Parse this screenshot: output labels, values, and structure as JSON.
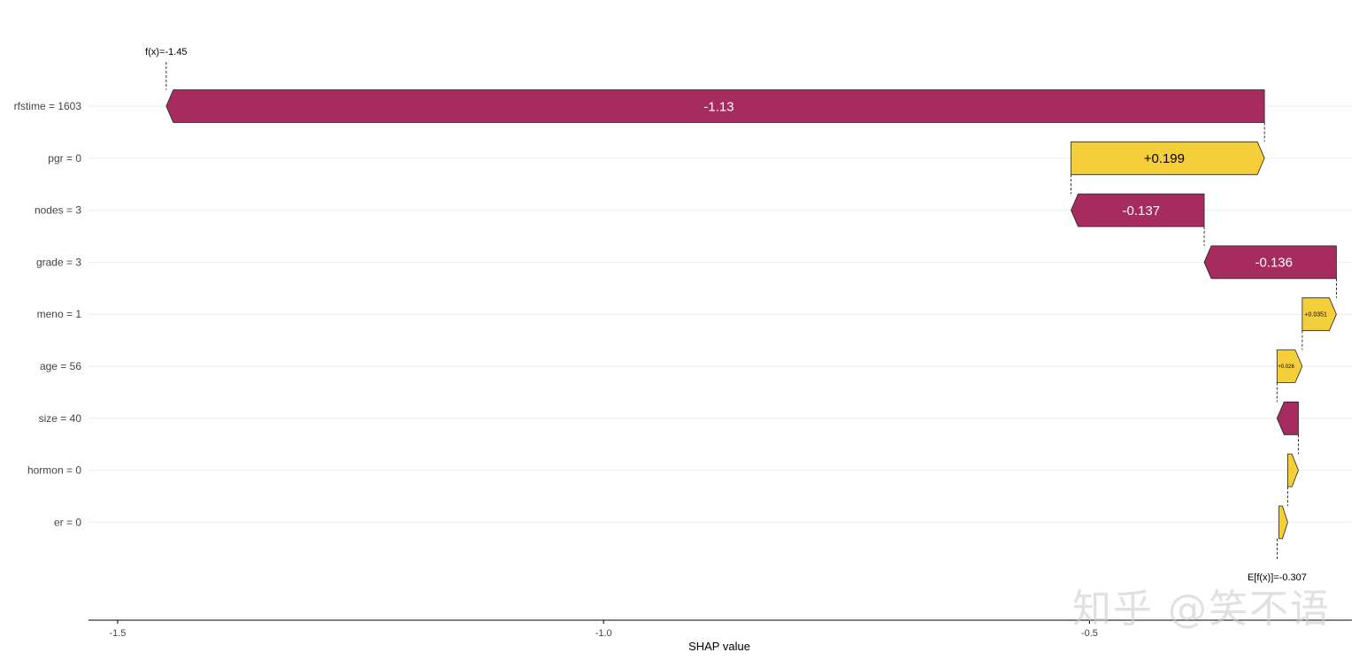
{
  "chart_data": {
    "type": "waterfall",
    "title": "",
    "xlabel": "SHAP value",
    "ylabel": "",
    "xlim": [
      -1.53,
      -0.23
    ],
    "x_ticks": [
      {
        "value": -1.5,
        "label": "-1.5"
      },
      {
        "value": -1.0,
        "label": "-1.0"
      },
      {
        "value": -0.5,
        "label": "-0.5"
      }
    ],
    "base_value": -0.307,
    "final_value": -1.45,
    "f_label": "f(x)=-1.45",
    "e_label": "E[f(x)]=-0.307",
    "features": [
      {
        "label": "rfstime = 1603",
        "value": -1.13,
        "value_label": "-1.13"
      },
      {
        "label": "pgr = 0",
        "value": 0.199,
        "value_label": "+0.199"
      },
      {
        "label": "nodes = 3",
        "value": -0.137,
        "value_label": "-0.137"
      },
      {
        "label": "grade = 3",
        "value": -0.136,
        "value_label": "-0.136"
      },
      {
        "label": "meno = 1",
        "value": 0.0351,
        "value_label": "+0.0351"
      },
      {
        "label": "age = 56",
        "value": 0.026,
        "value_label": "+0.026"
      },
      {
        "label": "size = 40",
        "value": -0.022,
        "value_label": ""
      },
      {
        "label": "hormon = 0",
        "value": 0.011,
        "value_label": ""
      },
      {
        "label": "er = 0",
        "value": 0.009,
        "value_label": ""
      }
    ],
    "colors": {
      "negative": "#A62B5E",
      "positive": "#F5CF3A",
      "grid": "#EBEBEB"
    },
    "grid": true
  },
  "watermark": "知乎 @笑不语"
}
